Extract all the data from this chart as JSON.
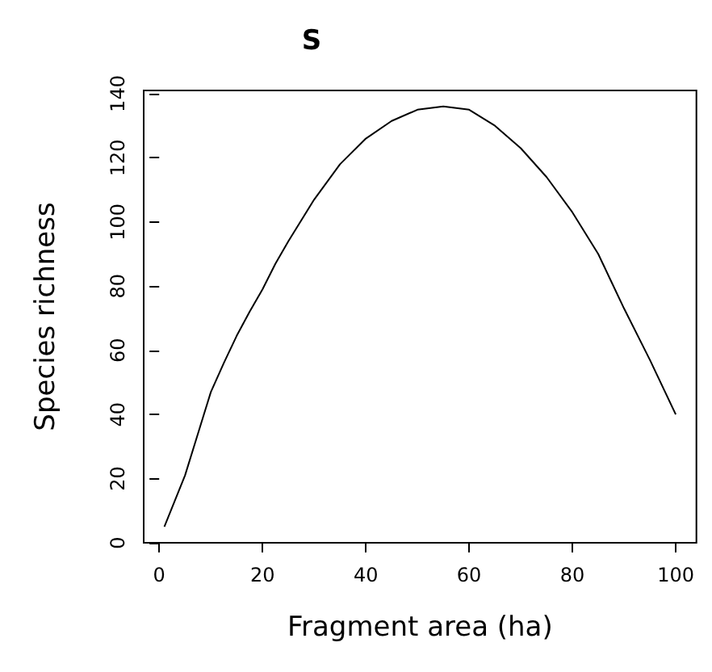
{
  "chart_data": {
    "type": "line",
    "title": "S",
    "xlabel": "Fragment area (ha)",
    "ylabel": "Species richness",
    "x": [
      1,
      3,
      5,
      7.5,
      10,
      12.5,
      15,
      17.5,
      20,
      22.5,
      25,
      30,
      35,
      40,
      45,
      50,
      55,
      60,
      65,
      70,
      75,
      80,
      85,
      90,
      95,
      100
    ],
    "series": [
      {
        "color": "#000000",
        "values": [
          5,
          13,
          21,
          34,
          47,
          56,
          64.5,
          72,
          79,
          87,
          94,
          107,
          118,
          126,
          131.5,
          135,
          136,
          135,
          130,
          123,
          114,
          103,
          90,
          73,
          57,
          40
        ]
      }
    ],
    "xlim": [
      -3,
      104
    ],
    "xticks": [
      0,
      20,
      40,
      60,
      80,
      100
    ],
    "ylim": [
      0,
      141
    ],
    "yticks": [
      0,
      20,
      40,
      60,
      80,
      100,
      120,
      140
    ],
    "grid": false,
    "marker": "none",
    "line_style": "solid"
  }
}
